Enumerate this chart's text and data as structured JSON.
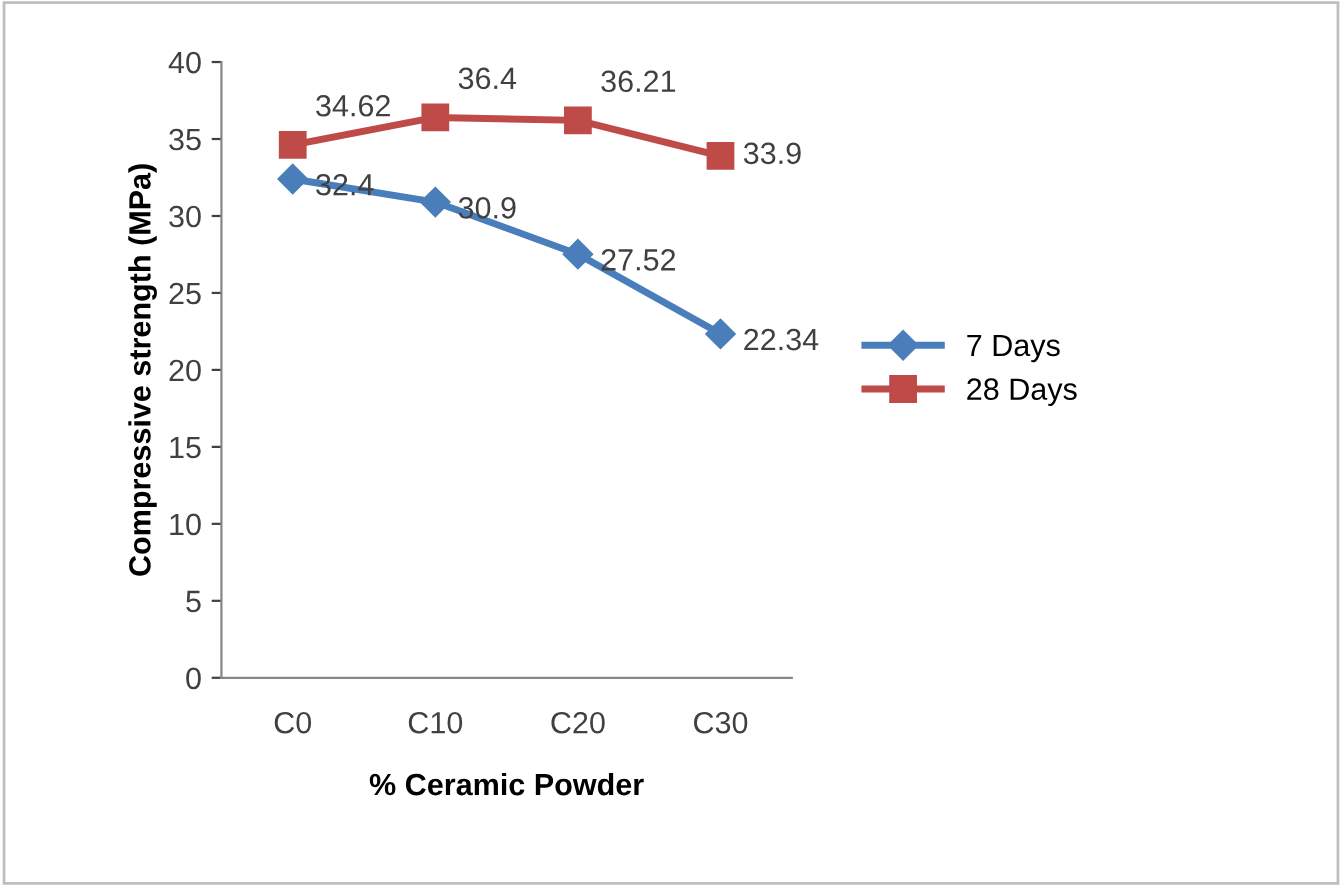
{
  "chart_data": {
    "type": "line",
    "xlabel": "% Ceramic Powder",
    "ylabel": "Compressive strength (MPa)",
    "categories": [
      "C0",
      "C10",
      "C20",
      "C30"
    ],
    "series": [
      {
        "name": "7 Days",
        "color": "#4a7ebb",
        "marker": "diamond",
        "values": [
          32.4,
          30.9,
          27.52,
          22.34
        ]
      },
      {
        "name": "28 Days",
        "color": "#be4b48",
        "marker": "square",
        "values": [
          34.62,
          36.4,
          36.21,
          33.9
        ]
      }
    ],
    "ylim": [
      0,
      40
    ],
    "yticks": [
      0,
      5,
      10,
      15,
      20,
      25,
      30,
      35,
      40
    ],
    "grid": false,
    "legend": "right",
    "data_labels": true
  }
}
